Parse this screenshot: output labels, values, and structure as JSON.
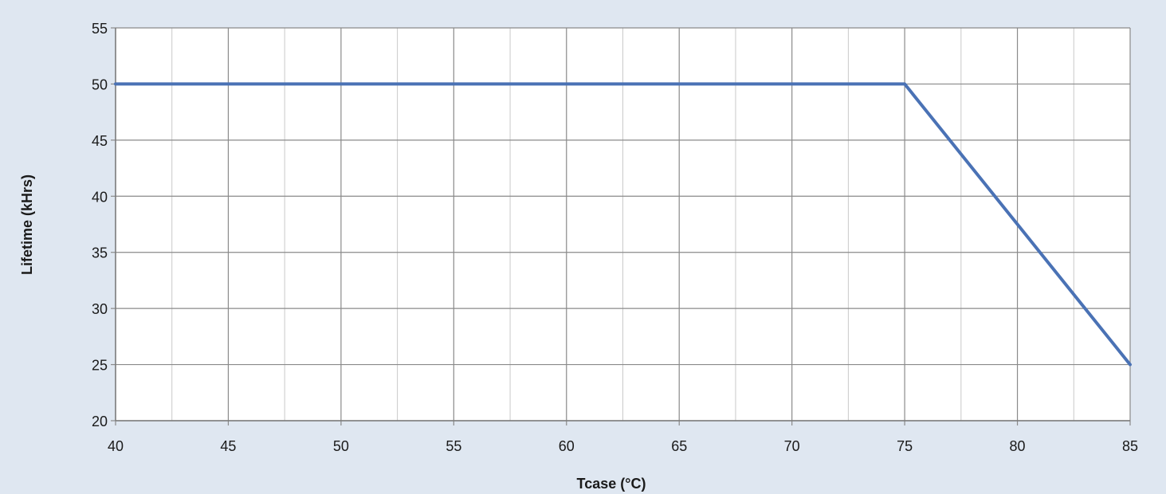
{
  "chart_data": {
    "type": "line",
    "title": "",
    "xlabel": "Tcase (°C)",
    "ylabel": "Lifetime (kHrs)",
    "xlim": [
      40,
      85
    ],
    "ylim": [
      20,
      55
    ],
    "x_ticks": [
      40,
      45,
      50,
      55,
      60,
      65,
      70,
      75,
      80,
      85
    ],
    "y_ticks": [
      20,
      25,
      30,
      35,
      40,
      45,
      50,
      55
    ],
    "grid": true,
    "legend": "none",
    "series": [
      {
        "color": "#4a72b5",
        "points": [
          {
            "x": 40,
            "y": 50
          },
          {
            "x": 75,
            "y": 50
          },
          {
            "x": 85,
            "y": 25
          }
        ]
      }
    ]
  }
}
